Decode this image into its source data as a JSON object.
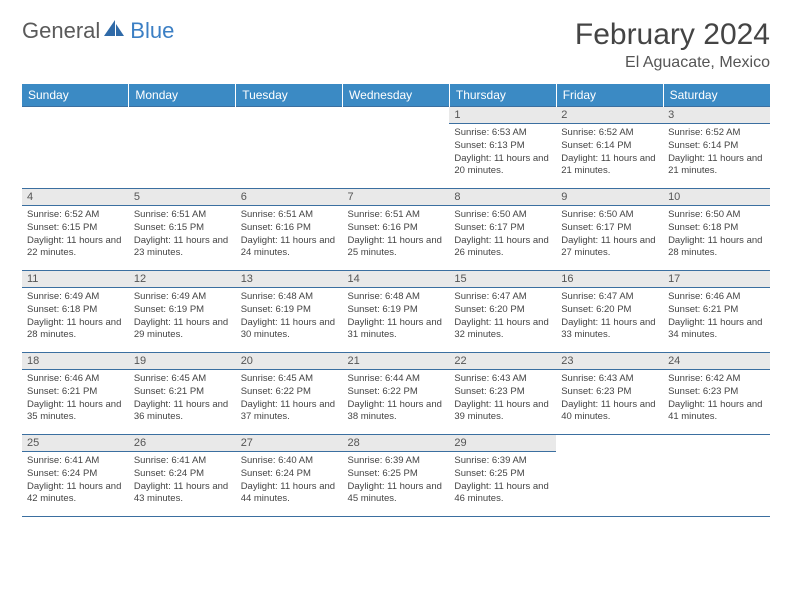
{
  "logo": {
    "part1": "General",
    "part2": "Blue"
  },
  "header": {
    "month": "February 2024",
    "location": "El Aguacate, Mexico"
  },
  "colors": {
    "header_bg": "#3b8ac4",
    "header_text": "#ffffff",
    "daynum_bg": "#e9e9e9",
    "grid_line": "#3b6fa0",
    "logo_blue": "#2f6aa8"
  },
  "days": [
    "Sunday",
    "Monday",
    "Tuesday",
    "Wednesday",
    "Thursday",
    "Friday",
    "Saturday"
  ],
  "weeks": [
    [
      {
        "n": "",
        "empty": true
      },
      {
        "n": "",
        "empty": true
      },
      {
        "n": "",
        "empty": true
      },
      {
        "n": "",
        "empty": true
      },
      {
        "n": "1",
        "sr": "Sunrise: 6:53 AM",
        "ss": "Sunset: 6:13 PM",
        "dl": "Daylight: 11 hours and 20 minutes."
      },
      {
        "n": "2",
        "sr": "Sunrise: 6:52 AM",
        "ss": "Sunset: 6:14 PM",
        "dl": "Daylight: 11 hours and 21 minutes."
      },
      {
        "n": "3",
        "sr": "Sunrise: 6:52 AM",
        "ss": "Sunset: 6:14 PM",
        "dl": "Daylight: 11 hours and 21 minutes."
      }
    ],
    [
      {
        "n": "4",
        "sr": "Sunrise: 6:52 AM",
        "ss": "Sunset: 6:15 PM",
        "dl": "Daylight: 11 hours and 22 minutes."
      },
      {
        "n": "5",
        "sr": "Sunrise: 6:51 AM",
        "ss": "Sunset: 6:15 PM",
        "dl": "Daylight: 11 hours and 23 minutes."
      },
      {
        "n": "6",
        "sr": "Sunrise: 6:51 AM",
        "ss": "Sunset: 6:16 PM",
        "dl": "Daylight: 11 hours and 24 minutes."
      },
      {
        "n": "7",
        "sr": "Sunrise: 6:51 AM",
        "ss": "Sunset: 6:16 PM",
        "dl": "Daylight: 11 hours and 25 minutes."
      },
      {
        "n": "8",
        "sr": "Sunrise: 6:50 AM",
        "ss": "Sunset: 6:17 PM",
        "dl": "Daylight: 11 hours and 26 minutes."
      },
      {
        "n": "9",
        "sr": "Sunrise: 6:50 AM",
        "ss": "Sunset: 6:17 PM",
        "dl": "Daylight: 11 hours and 27 minutes."
      },
      {
        "n": "10",
        "sr": "Sunrise: 6:50 AM",
        "ss": "Sunset: 6:18 PM",
        "dl": "Daylight: 11 hours and 28 minutes."
      }
    ],
    [
      {
        "n": "11",
        "sr": "Sunrise: 6:49 AM",
        "ss": "Sunset: 6:18 PM",
        "dl": "Daylight: 11 hours and 28 minutes."
      },
      {
        "n": "12",
        "sr": "Sunrise: 6:49 AM",
        "ss": "Sunset: 6:19 PM",
        "dl": "Daylight: 11 hours and 29 minutes."
      },
      {
        "n": "13",
        "sr": "Sunrise: 6:48 AM",
        "ss": "Sunset: 6:19 PM",
        "dl": "Daylight: 11 hours and 30 minutes."
      },
      {
        "n": "14",
        "sr": "Sunrise: 6:48 AM",
        "ss": "Sunset: 6:19 PM",
        "dl": "Daylight: 11 hours and 31 minutes."
      },
      {
        "n": "15",
        "sr": "Sunrise: 6:47 AM",
        "ss": "Sunset: 6:20 PM",
        "dl": "Daylight: 11 hours and 32 minutes."
      },
      {
        "n": "16",
        "sr": "Sunrise: 6:47 AM",
        "ss": "Sunset: 6:20 PM",
        "dl": "Daylight: 11 hours and 33 minutes."
      },
      {
        "n": "17",
        "sr": "Sunrise: 6:46 AM",
        "ss": "Sunset: 6:21 PM",
        "dl": "Daylight: 11 hours and 34 minutes."
      }
    ],
    [
      {
        "n": "18",
        "sr": "Sunrise: 6:46 AM",
        "ss": "Sunset: 6:21 PM",
        "dl": "Daylight: 11 hours and 35 minutes."
      },
      {
        "n": "19",
        "sr": "Sunrise: 6:45 AM",
        "ss": "Sunset: 6:21 PM",
        "dl": "Daylight: 11 hours and 36 minutes."
      },
      {
        "n": "20",
        "sr": "Sunrise: 6:45 AM",
        "ss": "Sunset: 6:22 PM",
        "dl": "Daylight: 11 hours and 37 minutes."
      },
      {
        "n": "21",
        "sr": "Sunrise: 6:44 AM",
        "ss": "Sunset: 6:22 PM",
        "dl": "Daylight: 11 hours and 38 minutes."
      },
      {
        "n": "22",
        "sr": "Sunrise: 6:43 AM",
        "ss": "Sunset: 6:23 PM",
        "dl": "Daylight: 11 hours and 39 minutes."
      },
      {
        "n": "23",
        "sr": "Sunrise: 6:43 AM",
        "ss": "Sunset: 6:23 PM",
        "dl": "Daylight: 11 hours and 40 minutes."
      },
      {
        "n": "24",
        "sr": "Sunrise: 6:42 AM",
        "ss": "Sunset: 6:23 PM",
        "dl": "Daylight: 11 hours and 41 minutes."
      }
    ],
    [
      {
        "n": "25",
        "sr": "Sunrise: 6:41 AM",
        "ss": "Sunset: 6:24 PM",
        "dl": "Daylight: 11 hours and 42 minutes."
      },
      {
        "n": "26",
        "sr": "Sunrise: 6:41 AM",
        "ss": "Sunset: 6:24 PM",
        "dl": "Daylight: 11 hours and 43 minutes."
      },
      {
        "n": "27",
        "sr": "Sunrise: 6:40 AM",
        "ss": "Sunset: 6:24 PM",
        "dl": "Daylight: 11 hours and 44 minutes."
      },
      {
        "n": "28",
        "sr": "Sunrise: 6:39 AM",
        "ss": "Sunset: 6:25 PM",
        "dl": "Daylight: 11 hours and 45 minutes."
      },
      {
        "n": "29",
        "sr": "Sunrise: 6:39 AM",
        "ss": "Sunset: 6:25 PM",
        "dl": "Daylight: 11 hours and 46 minutes."
      },
      {
        "n": "",
        "empty": true
      },
      {
        "n": "",
        "empty": true
      }
    ]
  ]
}
